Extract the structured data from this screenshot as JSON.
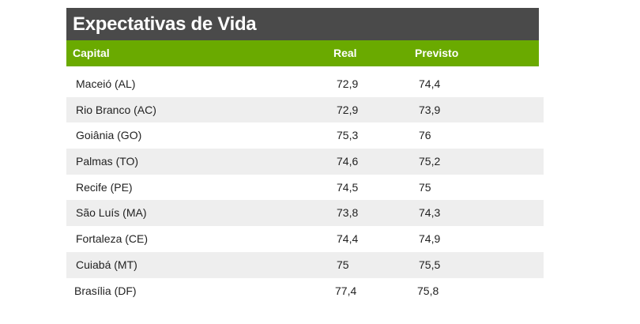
{
  "table": {
    "title": "Expectativas de Vida",
    "headers": {
      "capital": "Capital",
      "real": "Real",
      "previsto": "Previsto"
    },
    "rows": [
      {
        "capital": "Maceió (AL)",
        "real": "72,9",
        "previsto": "74,4"
      },
      {
        "capital": "Rio Branco (AC)",
        "real": "72,9",
        "previsto": "73,9"
      },
      {
        "capital": "Goiânia (GO)",
        "real": "75,3",
        "previsto": "76"
      },
      {
        "capital": "Palmas (TO)",
        "real": "74,6",
        "previsto": "75,2"
      },
      {
        "capital": "Recife (PE)",
        "real": "74,5",
        "previsto": "75"
      },
      {
        "capital": "São Luís (MA)",
        "real": "73,8",
        "previsto": "74,3"
      },
      {
        "capital": "Fortaleza (CE)",
        "real": "74,4",
        "previsto": "74,9"
      },
      {
        "capital": "Cuiabá (MT)",
        "real": "75",
        "previsto": "75,5"
      },
      {
        "capital": "Brasília (DF)",
        "real": "77,4",
        "previsto": "75,8"
      }
    ]
  },
  "colors": {
    "title_bg": "#4a4a4a",
    "header_bg": "#6aaa00",
    "alt_row_bg": "#eeeeee"
  }
}
